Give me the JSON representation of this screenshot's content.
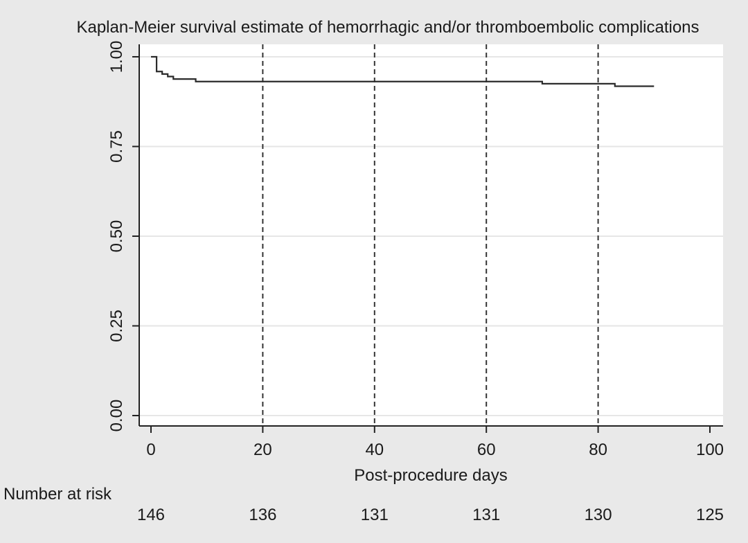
{
  "chart_data": {
    "type": "line",
    "title": "Kaplan-Meier survival estimate of hemorrhagic and/or thromboembolic complications",
    "xlabel": "Post-procedure days",
    "ylabel": "",
    "xlim": [
      0,
      100
    ],
    "ylim": [
      0,
      1
    ],
    "x_ticks": [
      0,
      20,
      40,
      60,
      80,
      100
    ],
    "y_ticks": [
      0.0,
      0.25,
      0.5,
      0.75,
      1.0
    ],
    "y_tick_labels": [
      "0.00",
      "0.25",
      "0.50",
      "0.75",
      "1.00"
    ],
    "grid": "horizontal",
    "vertical_reference_lines_x": [
      20,
      40,
      60,
      80
    ],
    "series": [
      {
        "step": true,
        "x": [
          0,
          1,
          2,
          3,
          4,
          8,
          70,
          83,
          90
        ],
        "y": [
          1.0,
          0.959,
          0.952,
          0.945,
          0.938,
          0.931,
          0.925,
          0.918,
          0.918
        ]
      }
    ],
    "risk_table": {
      "label": "Number at risk",
      "x": [
        0,
        20,
        40,
        60,
        80,
        100
      ],
      "counts": [
        "146",
        "136",
        "131",
        "131",
        "130",
        "125"
      ]
    },
    "colors": {
      "background": "#e9e9e9",
      "plot_area": "#ffffff",
      "line": "#2b2b2b",
      "gridline": "#e6e6e6"
    }
  }
}
